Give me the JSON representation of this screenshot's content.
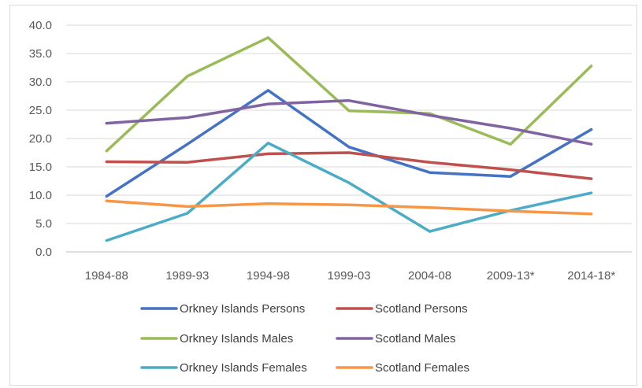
{
  "chart_data": {
    "type": "line",
    "categories": [
      "1984-88",
      "1989-93",
      "1994-98",
      "1999-03",
      "2004-08",
      "2009-13*",
      "2014-18*"
    ],
    "ylim": [
      0,
      40
    ],
    "y_ticks": [
      "0.0",
      "5.0",
      "10.0",
      "15.0",
      "20.0",
      "25.0",
      "30.0",
      "35.0",
      "40.0"
    ],
    "grid": "horizontal",
    "legend_position": "bottom",
    "xlabel": "",
    "ylabel": "",
    "title": "",
    "series": [
      {
        "name": "Orkney Islands Persons",
        "color": "#4472c4",
        "values": [
          9.8,
          19.0,
          28.5,
          18.5,
          14.0,
          13.3,
          21.6
        ]
      },
      {
        "name": "Scotland Persons",
        "color": "#c0504d",
        "values": [
          15.9,
          15.8,
          17.3,
          17.5,
          15.8,
          14.5,
          12.9
        ]
      },
      {
        "name": "Orkney Islands Males",
        "color": "#9bbb59",
        "values": [
          17.8,
          31.0,
          37.8,
          24.9,
          24.4,
          19.0,
          32.8
        ]
      },
      {
        "name": "Scotland Males",
        "color": "#8064a2",
        "values": [
          22.7,
          23.7,
          26.1,
          26.7,
          24.1,
          21.8,
          19.0
        ]
      },
      {
        "name": "Orkney Islands Females",
        "color": "#4bacc6",
        "values": [
          2.0,
          6.8,
          19.2,
          12.2,
          3.6,
          7.3,
          10.4
        ]
      },
      {
        "name": "Scotland Females",
        "color": "#f79646",
        "values": [
          9.0,
          8.0,
          8.5,
          8.3,
          7.8,
          7.2,
          6.7
        ]
      }
    ]
  }
}
